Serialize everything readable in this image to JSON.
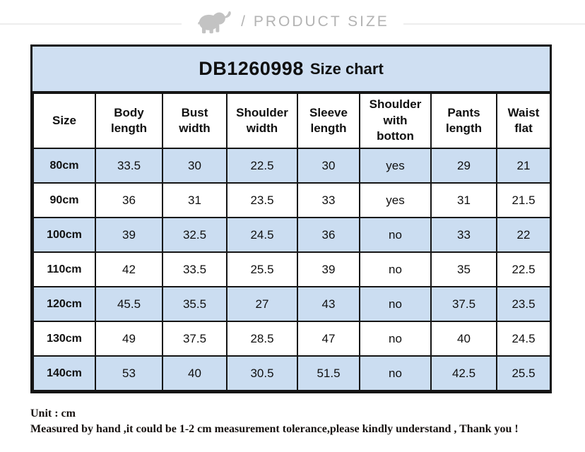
{
  "page_header": {
    "title": "/ PRODUCT SIZE",
    "logo": "elephant-icon"
  },
  "size_chart": {
    "title_model": "DB1260998",
    "title_rest": "Size chart",
    "columns": [
      "Size",
      "Body length",
      "Bust width",
      "Shoulder width",
      "Sleeve length",
      "Shoulder with botton",
      "Pants length",
      "Waist flat"
    ],
    "rows": [
      {
        "size": "80cm",
        "values": [
          "33.5",
          "30",
          "22.5",
          "30",
          "yes",
          "29",
          "21"
        ]
      },
      {
        "size": "90cm",
        "values": [
          "36",
          "31",
          "23.5",
          "33",
          "yes",
          "31",
          "21.5"
        ]
      },
      {
        "size": "100cm",
        "values": [
          "39",
          "32.5",
          "24.5",
          "36",
          "no",
          "33",
          "22"
        ]
      },
      {
        "size": "110cm",
        "values": [
          "42",
          "33.5",
          "25.5",
          "39",
          "no",
          "35",
          "22.5"
        ]
      },
      {
        "size": "120cm",
        "values": [
          "45.5",
          "35.5",
          "27",
          "43",
          "no",
          "37.5",
          "23.5"
        ]
      },
      {
        "size": "130cm",
        "values": [
          "49",
          "37.5",
          "28.5",
          "47",
          "no",
          "40",
          "24.5"
        ]
      },
      {
        "size": "140cm",
        "values": [
          "53",
          "40",
          "30.5",
          "51.5",
          "no",
          "42.5",
          "25.5"
        ]
      }
    ]
  },
  "chart_data": {
    "type": "table",
    "title": "DB1260998 Size chart",
    "columns": [
      "Size",
      "Body length",
      "Bust width",
      "Shoulder width",
      "Sleeve length",
      "Shoulder with botton",
      "Pants length",
      "Waist flat"
    ],
    "rows": [
      [
        "80cm",
        33.5,
        30,
        22.5,
        30,
        "yes",
        29,
        21
      ],
      [
        "90cm",
        36,
        31,
        23.5,
        33,
        "yes",
        31,
        21.5
      ],
      [
        "100cm",
        39,
        32.5,
        24.5,
        36,
        "no",
        33,
        22
      ],
      [
        "110cm",
        42,
        33.5,
        25.5,
        39,
        "no",
        35,
        22.5
      ],
      [
        "120cm",
        45.5,
        35.5,
        27,
        43,
        "no",
        37.5,
        23.5
      ],
      [
        "130cm",
        49,
        37.5,
        28.5,
        47,
        "no",
        40,
        24.5
      ],
      [
        "140cm",
        53,
        40,
        30.5,
        51.5,
        "no",
        42.5,
        25.5
      ]
    ],
    "unit": "cm",
    "layout_hints": {
      "striped_rows": true,
      "stripe_color": "#cbddf1",
      "grid": true
    }
  },
  "footer": {
    "unit_note": "Unit : cm",
    "tolerance_note": "Measured by hand ,it could be 1-2 cm measurement tolerance,please kindly understand , Thank you !"
  },
  "colors": {
    "band_blue": "#cfdff2",
    "row_blue": "#cbddf1",
    "border_black": "#151515",
    "header_gray": "#b3b3b3"
  }
}
